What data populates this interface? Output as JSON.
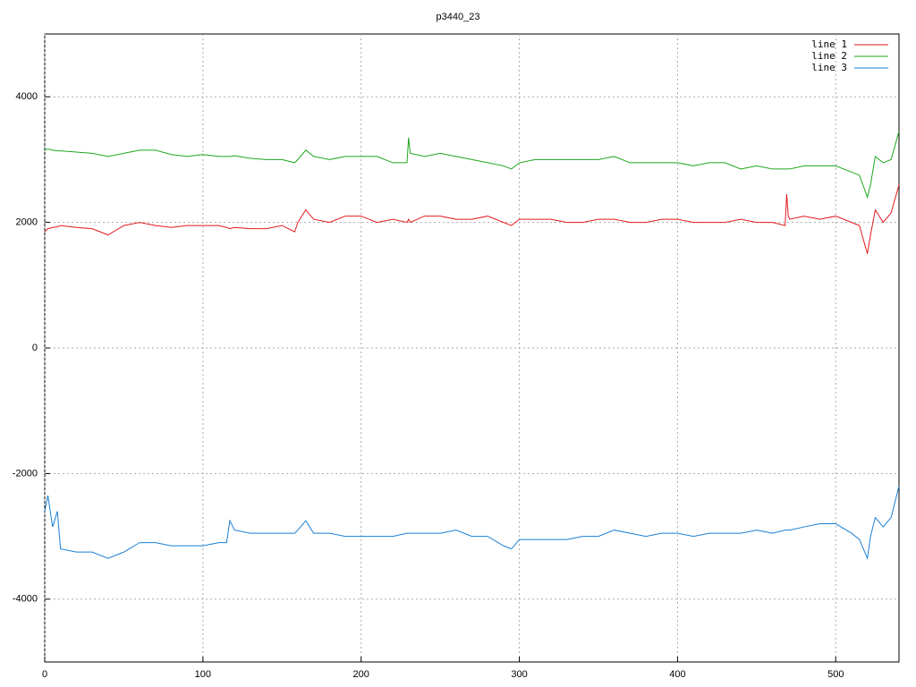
{
  "chart_data": {
    "type": "line",
    "title": "p3440_23",
    "x": [
      0,
      2,
      5,
      8,
      10,
      20,
      30,
      40,
      50,
      60,
      70,
      80,
      90,
      100,
      110,
      115,
      117,
      120,
      130,
      140,
      150,
      158,
      160,
      165,
      170,
      180,
      190,
      200,
      210,
      220,
      229,
      230,
      231,
      240,
      250,
      260,
      270,
      280,
      290,
      295,
      300,
      310,
      320,
      330,
      340,
      350,
      360,
      370,
      380,
      390,
      400,
      410,
      420,
      430,
      440,
      450,
      460,
      468,
      469,
      470,
      471,
      480,
      490,
      500,
      510,
      515,
      520,
      522,
      525,
      530,
      535,
      540
    ],
    "series": [
      {
        "name": "line 1",
        "color": "#e41a1c",
        "values": [
          1850,
          1900,
          1920,
          1930,
          1950,
          1920,
          1900,
          1800,
          1950,
          2000,
          1950,
          1920,
          1950,
          1950,
          1950,
          1920,
          1900,
          1920,
          1900,
          1900,
          1950,
          1850,
          2000,
          2200,
          2050,
          2000,
          2100,
          2100,
          2000,
          2050,
          2000,
          2050,
          2000,
          2100,
          2100,
          2050,
          2050,
          2100,
          2000,
          1950,
          2050,
          2050,
          2050,
          2000,
          2000,
          2050,
          2050,
          2000,
          2000,
          2050,
          2050,
          2000,
          2000,
          2000,
          2050,
          2000,
          2000,
          1950,
          2450,
          2100,
          2050,
          2100,
          2050,
          2100,
          2000,
          1950,
          1500,
          1800,
          2200,
          2000,
          2150,
          2600
        ]
      },
      {
        "name": "line 2",
        "color": "#1ca61c",
        "values": [
          3150,
          3170,
          3150,
          3140,
          3140,
          3120,
          3100,
          3050,
          3100,
          3150,
          3150,
          3080,
          3050,
          3080,
          3050,
          3050,
          3050,
          3060,
          3020,
          3000,
          3000,
          2950,
          3000,
          3150,
          3050,
          3000,
          3050,
          3050,
          3050,
          2950,
          2950,
          3350,
          3100,
          3050,
          3100,
          3050,
          3000,
          2950,
          2900,
          2850,
          2950,
          3000,
          3000,
          3000,
          3000,
          3000,
          3050,
          2950,
          2950,
          2950,
          2950,
          2900,
          2950,
          2950,
          2850,
          2900,
          2850,
          2850,
          2850,
          2850,
          2850,
          2900,
          2900,
          2900,
          2800,
          2750,
          2400,
          2600,
          3050,
          2950,
          3000,
          3450
        ]
      },
      {
        "name": "line 3",
        "color": "#1a7fd4",
        "values": [
          -2600,
          -2350,
          -2850,
          -2600,
          -3200,
          -3250,
          -3250,
          -3350,
          -3250,
          -3100,
          -3100,
          -3150,
          -3150,
          -3150,
          -3100,
          -3100,
          -2750,
          -2900,
          -2950,
          -2950,
          -2950,
          -2950,
          -2900,
          -2750,
          -2950,
          -2950,
          -3000,
          -3000,
          -3000,
          -3000,
          -2950,
          -2950,
          -2950,
          -2950,
          -2950,
          -2900,
          -3000,
          -3000,
          -3150,
          -3200,
          -3050,
          -3050,
          -3050,
          -3050,
          -3000,
          -3000,
          -2900,
          -2950,
          -3000,
          -2950,
          -2950,
          -3000,
          -2950,
          -2950,
          -2950,
          -2900,
          -2950,
          -2900,
          -2900,
          -2900,
          -2900,
          -2850,
          -2800,
          -2800,
          -2950,
          -3050,
          -3350,
          -3000,
          -2700,
          -2850,
          -2700,
          -2200
        ]
      }
    ],
    "xlim": [
      0,
      540
    ],
    "ylim": [
      -5000,
      5000
    ],
    "xticks": [
      0,
      100,
      200,
      300,
      400,
      500
    ],
    "yticks": [
      -4000,
      -2000,
      0,
      2000,
      4000
    ],
    "grid": true,
    "legend": "top-right"
  }
}
